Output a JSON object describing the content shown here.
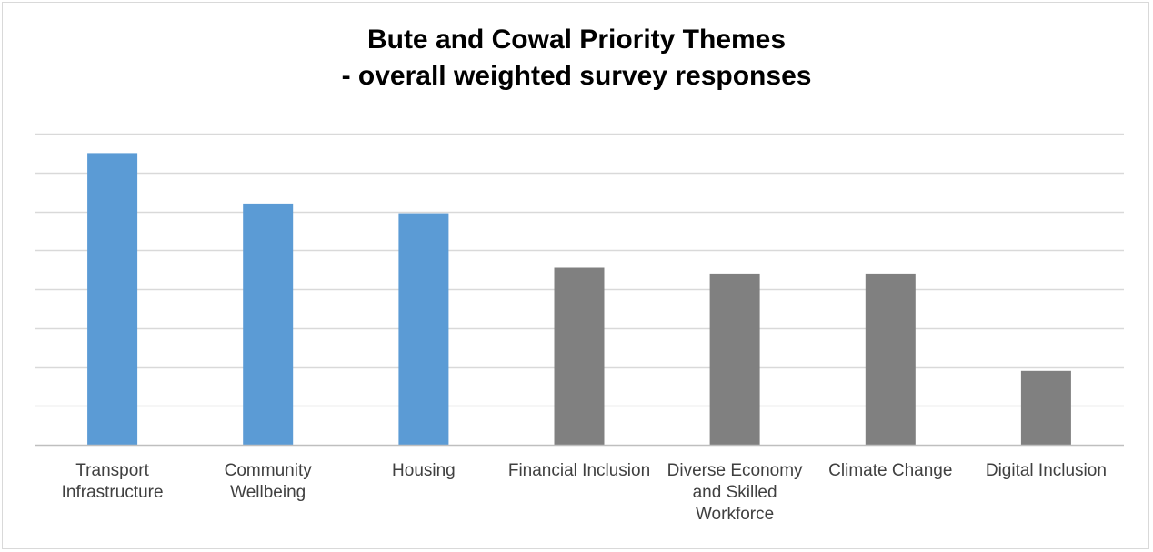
{
  "chart_data": {
    "type": "bar",
    "title": "Bute and Cowal Priority Themes",
    "subtitle": "- overall weighted survey responses",
    "categories": [
      "Transport Infrastructure",
      "Community Wellbeing",
      "Housing",
      "Financial Inclusion",
      "Diverse Economy and Skilled Workforce",
      "Climate Change",
      "Digital Inclusion"
    ],
    "values": [
      7.5,
      6.2,
      5.95,
      4.55,
      4.4,
      4.4,
      1.9
    ],
    "highlighted": [
      true,
      true,
      true,
      false,
      false,
      false,
      false
    ],
    "colors": {
      "highlight": "#5b9bd5",
      "other": "#808080",
      "grid": "#d9d9d9",
      "axis": "#bfbfbf",
      "label": "#404040"
    },
    "ylim": [
      0,
      8
    ],
    "y_gridlines": 8,
    "y_tick_labels_shown": false,
    "grid": true,
    "xlabel": "",
    "ylabel": ""
  }
}
